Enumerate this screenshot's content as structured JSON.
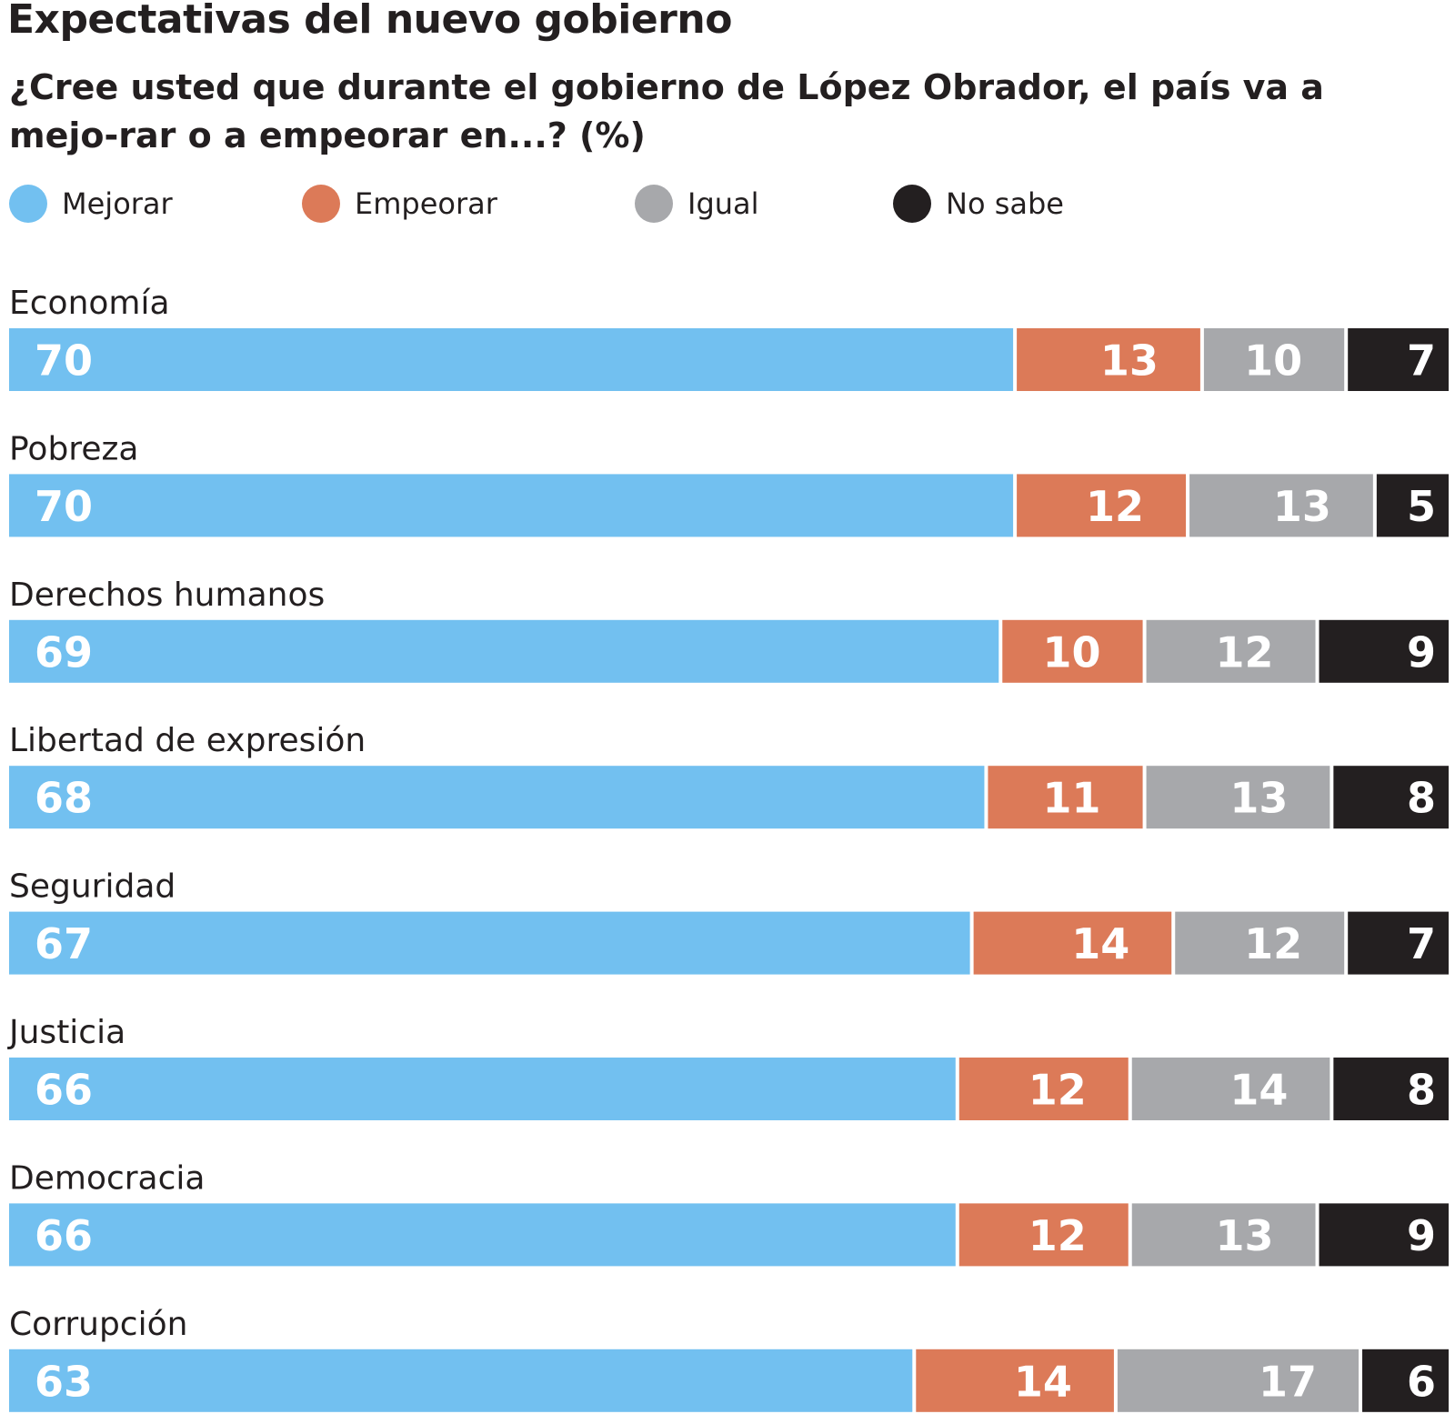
{
  "chart_data": {
    "type": "bar",
    "orientation": "horizontal",
    "stacked": true,
    "title": "Expectativas del nuevo gobierno",
    "subtitle": "¿Cree usted que durante el gobierno de López Obrador, el país va a mejo-rar o a empeorar en...? (%)",
    "categories": [
      "Economía",
      "Pobreza",
      "Derechos humanos",
      "Libertad de expresión",
      "Seguridad",
      "Justicia",
      "Democracia",
      "Corrupción"
    ],
    "series": [
      {
        "name": "Mejorar",
        "color": "#72c0f0",
        "values": [
          70,
          70,
          69,
          68,
          67,
          66,
          66,
          63
        ]
      },
      {
        "name": "Empeorar",
        "color": "#dc7a58",
        "values": [
          13,
          12,
          10,
          11,
          14,
          12,
          12,
          14
        ]
      },
      {
        "name": "Igual",
        "color": "#a7a8ab",
        "values": [
          10,
          13,
          12,
          13,
          12,
          14,
          13,
          17
        ]
      },
      {
        "name": "No sabe",
        "color": "#231f20",
        "values": [
          7,
          5,
          9,
          8,
          7,
          8,
          9,
          6
        ]
      }
    ],
    "xlim": [
      0,
      100
    ],
    "grid": false,
    "legend_position": "top"
  }
}
